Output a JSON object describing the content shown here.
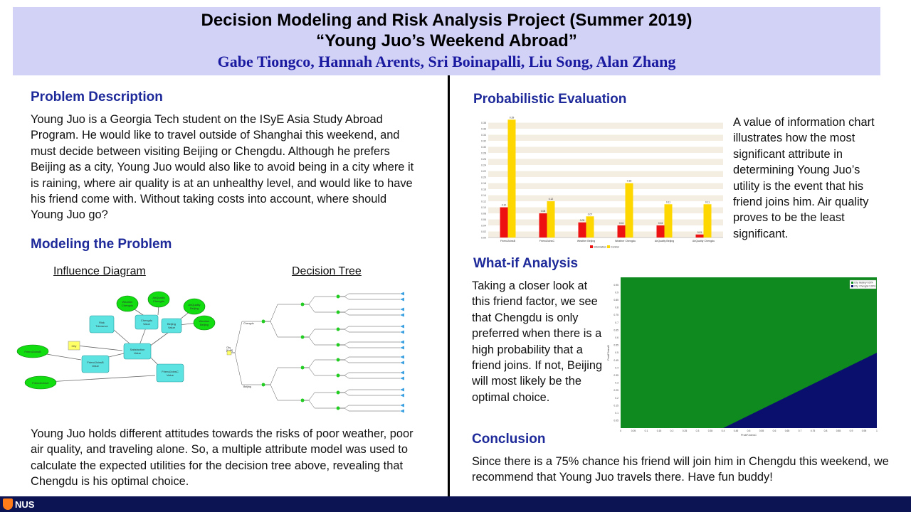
{
  "header": {
    "title": "Decision Modeling and Risk Analysis Project (Summer 2019)",
    "subtitle": "“Young Juo’s Weekend Abroad”",
    "authors": "Gabe Tiongco, Hannah Arents, Sri Boinapalli, Liu Song, Alan Zhang"
  },
  "problem": {
    "title": "Problem Description",
    "text": "Young Juo is a Georgia Tech student on the ISyE Asia Study Abroad Program. He would like to travel outside of Shanghai this weekend, and must decide between visiting Beijing or Chengdu. Although he prefers Beijing as a city, Young Juo would also like to avoid being in a city where it is raining, where air quality is at an unhealthy level, and would like to have his friend come with. Without taking costs into account, where should Young Juo go?"
  },
  "modeling": {
    "title": "Modeling the Problem",
    "influence_label": "Influence Diagram",
    "tree_label": "Decision Tree",
    "text": "Young Juo holds different attitudes towards the risks of poor weather, poor air quality, and traveling alone. So, a multiple attribute model was used to calculate the expected utilities for the decision tree above, revealing that Chengdu is his optimal choice."
  },
  "influence_diagram": {
    "chance_nodes": [
      "Weather Chengdu",
      "AirQuality Chengdu",
      "AirQuality Beijing",
      "Weather Beijing",
      "FriendJoinsB",
      "FriendJoinsC"
    ],
    "value_nodes": [
      "Risk Tolerance",
      "Chengdu Value",
      "Beijing Value",
      "Satisfaction Value",
      "FriendJoinsB Value",
      "FriendJoinsC Value"
    ],
    "decision_nodes": [
      "City"
    ]
  },
  "decision_tree": {
    "root_label": "City",
    "root_value": "[0.48]",
    "branches": [
      "Chengdu",
      "Beijing"
    ]
  },
  "probabilistic": {
    "title": "Probabilistic  Evaluation",
    "text": "A value of information chart illustrates how the most significant attribute in determining Young Juo’s utility is the event that his friend joins him. Air quality proves to be the least significant."
  },
  "chart_data": [
    {
      "type": "bar",
      "categories": [
        "FriendJoinsB",
        "FriendJoinsC",
        "Weather Beijing",
        "Weather Chengdu",
        "AirQuality Beijing",
        "AirQuality Chengdu"
      ],
      "series": [
        {
          "name": "Information",
          "values": [
            0.1,
            0.08,
            0.05,
            0.04,
            0.04,
            0.01
          ],
          "color": "#ee1111"
        },
        {
          "name": "Control",
          "values": [
            0.39,
            0.12,
            0.07,
            0.18,
            0.11,
            0.11
          ],
          "color": "#ffd700"
        }
      ],
      "data_labels": [
        [
          "0.10",
          "0.08",
          "0.05",
          "0.04",
          "0.04",
          "0.01"
        ],
        [
          "0.39",
          "0.12",
          "0.07",
          "0.18",
          "0.11",
          "0.11"
        ]
      ],
      "ylim": [
        0,
        0.4
      ],
      "yticks": [
        "0.00",
        "0.02",
        "0.04",
        "0.06",
        "0.08",
        "0.10",
        "0.12",
        "0.14",
        "0.16",
        "0.18",
        "0.20",
        "0.22",
        "0.24",
        "0.26",
        "0.28",
        "0.30",
        "0.32",
        "0.34",
        "0.36",
        "0.38"
      ],
      "legend": "bottom-center"
    },
    {
      "type": "heatmap",
      "x_range": [
        0,
        1
      ],
      "y_range": [
        0,
        1
      ],
      "xlabel": "ProbFJoinsC",
      "ylabel": "ProbFJoinsB",
      "regions": [
        {
          "name": "City: Beijing=100%",
          "color": "#0f8a1e"
        },
        {
          "name": "City: Chengdu=100%",
          "color": "#0a0f6e"
        }
      ],
      "boundary": [
        [
          0.4,
          0
        ],
        [
          1.0,
          0.5
        ]
      ],
      "xticks": [
        "0",
        "0.05",
        "0.1",
        "0.15",
        "0.2",
        "0.25",
        "0.3",
        "0.35",
        "0.4",
        "0.45",
        "0.5",
        "0.55",
        "0.6",
        "0.65",
        "0.7",
        "0.75",
        "0.8",
        "0.85",
        "0.9",
        "0.95",
        "1"
      ],
      "yticks": [
        "0.05",
        "0.1",
        "0.15",
        "0.2",
        "0.25",
        "0.3",
        "0.35",
        "0.4",
        "0.45",
        "0.5",
        "0.55",
        "0.6",
        "0.65",
        "0.7",
        "0.75",
        "0.8",
        "0.85",
        "0.9",
        "0.95"
      ],
      "legend": "top-right"
    }
  ],
  "whatif": {
    "title": "What-if Analysis",
    "text": "Taking a closer look at this friend factor, we see that Chengdu is only preferred when there is a high probability that a friend joins. If not, Beijing will most likely be the optimal choice."
  },
  "conclusion": {
    "title": "Conclusion",
    "text": "Since there is a 75% chance his friend will join him in Chengdu this weekend, we recommend that Young Juo travels there. Have fun buddy!"
  },
  "footer": {
    "logo": "NUS"
  }
}
